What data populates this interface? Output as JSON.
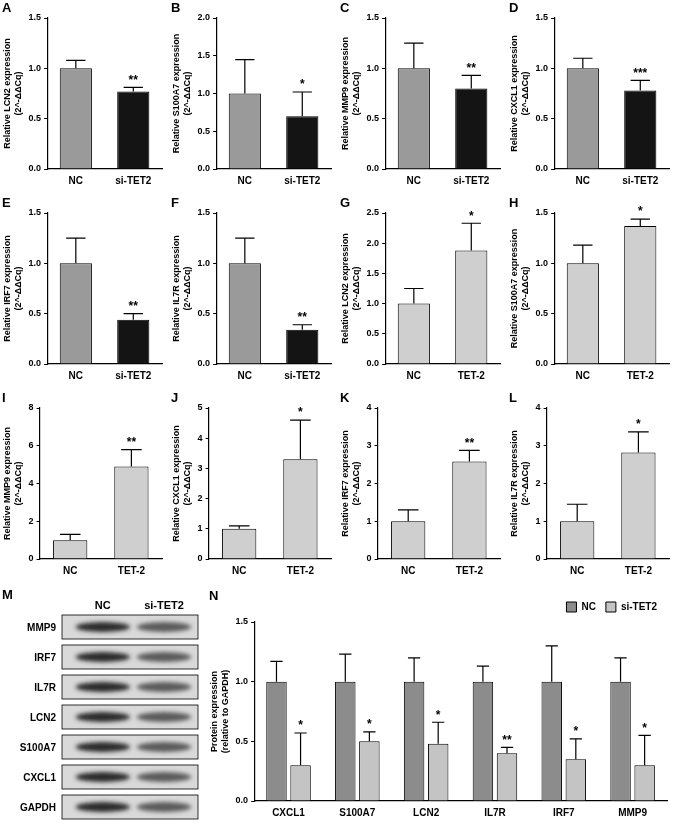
{
  "chart_data": [
    {
      "type": "bar",
      "panel_label": "A",
      "y_label": [
        "Relative LCN2 expression",
        "(2^-ΔΔCq)"
      ],
      "categories": [
        "NC",
        "si-TET2"
      ],
      "values": [
        1.0,
        0.77
      ],
      "errors": [
        0.08,
        0.04
      ],
      "colors": [
        "#9a9a9a",
        "#141414"
      ],
      "annotations": [
        {
          "category": "si-TET2",
          "text": "**"
        }
      ],
      "ylim": [
        0,
        1.5
      ],
      "yticks": [
        {
          "value": 0,
          "label": "0.0"
        },
        0.5,
        {
          "value": 1,
          "label": "1.0"
        },
        1.5
      ],
      "grid": false
    },
    {
      "type": "bar",
      "panel_label": "B",
      "y_label": [
        "Relative S100A7 expression",
        "(2^-ΔΔCq)"
      ],
      "categories": [
        "NC",
        "si-TET2"
      ],
      "values": [
        1.0,
        0.7
      ],
      "errors": [
        0.45,
        0.32
      ],
      "colors": [
        "#9a9a9a",
        "#141414"
      ],
      "annotations": [
        {
          "category": "si-TET2",
          "text": "*"
        }
      ],
      "ylim": [
        0,
        2
      ],
      "yticks": [
        {
          "value": 0,
          "label": "0.0"
        },
        0.5,
        {
          "value": 1,
          "label": "1.0"
        },
        1.5,
        {
          "value": 2,
          "label": "2.0"
        }
      ],
      "grid": false
    },
    {
      "type": "bar",
      "panel_label": "C",
      "y_label": [
        "Relative MMP9 expression",
        "(2^-ΔΔCq)"
      ],
      "categories": [
        "NC",
        "si-TET2"
      ],
      "values": [
        1.0,
        0.8
      ],
      "errors": [
        0.25,
        0.13
      ],
      "colors": [
        "#9a9a9a",
        "#141414"
      ],
      "annotations": [
        {
          "category": "si-TET2",
          "text": "**"
        }
      ],
      "ylim": [
        0,
        1.5
      ],
      "yticks": [
        {
          "value": 0,
          "label": "0.0"
        },
        0.5,
        {
          "value": 1,
          "label": "1.0"
        },
        1.5
      ],
      "grid": false
    },
    {
      "type": "bar",
      "panel_label": "D",
      "y_label": [
        "Relative CXCL1 expression",
        "(2^-ΔΔCq)"
      ],
      "categories": [
        "NC",
        "si-TET2"
      ],
      "values": [
        1.0,
        0.78
      ],
      "errors": [
        0.1,
        0.1
      ],
      "colors": [
        "#9a9a9a",
        "#141414"
      ],
      "annotations": [
        {
          "category": "si-TET2",
          "text": "***"
        }
      ],
      "ylim": [
        0,
        1.5
      ],
      "yticks": [
        {
          "value": 0,
          "label": "0.0"
        },
        0.5,
        {
          "value": 1,
          "label": "1.0"
        },
        1.5
      ],
      "grid": false
    },
    {
      "type": "bar",
      "panel_label": "E",
      "y_label": [
        "Relative IRF7 expression",
        "(2^-ΔΔCq)"
      ],
      "categories": [
        "NC",
        "si-TET2"
      ],
      "values": [
        1.0,
        0.44
      ],
      "errors": [
        0.25,
        0.06
      ],
      "colors": [
        "#9a9a9a",
        "#141414"
      ],
      "annotations": [
        {
          "category": "si-TET2",
          "text": "**"
        }
      ],
      "ylim": [
        0,
        1.5
      ],
      "yticks": [
        {
          "value": 0,
          "label": "0.0"
        },
        0.5,
        {
          "value": 1,
          "label": "1.0"
        },
        1.5
      ],
      "grid": false
    },
    {
      "type": "bar",
      "panel_label": "F",
      "y_label": [
        "Relative IL7R expression",
        "(2^-ΔΔCq)"
      ],
      "categories": [
        "NC",
        "si-TET2"
      ],
      "values": [
        1.0,
        0.34
      ],
      "errors": [
        0.25,
        0.05
      ],
      "colors": [
        "#9a9a9a",
        "#141414"
      ],
      "annotations": [
        {
          "category": "si-TET2",
          "text": "**"
        }
      ],
      "ylim": [
        0,
        1.5
      ],
      "yticks": [
        {
          "value": 0,
          "label": "0.0"
        },
        0.5,
        {
          "value": 1,
          "label": "1.0"
        },
        1.5
      ],
      "grid": false
    },
    {
      "type": "bar",
      "panel_label": "G",
      "y_label": [
        "Relative LCN2 expression",
        "(2^-ΔΔCq)"
      ],
      "categories": [
        "NC",
        "TET-2"
      ],
      "values": [
        1.0,
        1.88
      ],
      "errors": [
        0.25,
        0.45
      ],
      "colors": [
        "#cfcfcf",
        "#cfcfcf"
      ],
      "annotations": [
        {
          "category": "TET-2",
          "text": "*"
        }
      ],
      "ylim": [
        0,
        2.5
      ],
      "yticks": [
        {
          "value": 0,
          "label": "0.0"
        },
        0.5,
        {
          "value": 1,
          "label": "1.0"
        },
        1.5,
        {
          "value": 2,
          "label": "2.0"
        },
        2.5
      ],
      "grid": false
    },
    {
      "type": "bar",
      "panel_label": "H",
      "y_label": [
        "Relative S100A7 expression",
        "(2^-ΔΔCq)"
      ],
      "categories": [
        "NC",
        "TET-2"
      ],
      "values": [
        1.0,
        1.37
      ],
      "errors": [
        0.18,
        0.07
      ],
      "colors": [
        "#cfcfcf",
        "#cfcfcf"
      ],
      "annotations": [
        {
          "category": "TET-2",
          "text": "*"
        }
      ],
      "ylim": [
        0,
        1.5
      ],
      "yticks": [
        {
          "value": 0,
          "label": "0.0"
        },
        0.5,
        {
          "value": 1,
          "label": "1.0"
        },
        1.5
      ],
      "grid": false
    },
    {
      "type": "bar",
      "panel_label": "I",
      "y_label": [
        "Relative MMP9 expression",
        "(2^-ΔΔCq)"
      ],
      "categories": [
        "NC",
        "TET-2"
      ],
      "values": [
        1.0,
        4.9
      ],
      "errors": [
        0.3,
        0.9
      ],
      "colors": [
        "#cfcfcf",
        "#cfcfcf"
      ],
      "annotations": [
        {
          "category": "TET-2",
          "text": "**"
        }
      ],
      "ylim": [
        0,
        8
      ],
      "yticks": [
        0,
        2,
        4,
        6,
        8
      ],
      "grid": false
    },
    {
      "type": "bar",
      "panel_label": "J",
      "y_label": [
        "Relative CXCL1 expression",
        "(2^-ΔΔCq)"
      ],
      "categories": [
        "NC",
        "TET-2"
      ],
      "values": [
        1.0,
        3.3
      ],
      "errors": [
        0.1,
        1.3
      ],
      "colors": [
        "#cfcfcf",
        "#cfcfcf"
      ],
      "annotations": [
        {
          "category": "TET-2",
          "text": "*"
        }
      ],
      "ylim": [
        0,
        5
      ],
      "yticks": [
        0,
        1,
        2,
        3,
        4,
        5
      ],
      "grid": false
    },
    {
      "type": "bar",
      "panel_label": "K",
      "y_label": [
        "Relative IRF7 expression",
        "(2^-ΔΔCq)"
      ],
      "categories": [
        "NC",
        "TET-2"
      ],
      "values": [
        1.0,
        2.58
      ],
      "errors": [
        0.3,
        0.3
      ],
      "colors": [
        "#cfcfcf",
        "#cfcfcf"
      ],
      "annotations": [
        {
          "category": "TET-2",
          "text": "**"
        }
      ],
      "ylim": [
        0,
        4
      ],
      "yticks": [
        0,
        1,
        2,
        3,
        4
      ],
      "grid": false
    },
    {
      "type": "bar",
      "panel_label": "L",
      "y_label": [
        "Relative IL7R expression",
        "(2^-ΔΔCq)"
      ],
      "categories": [
        "NC",
        "TET-2"
      ],
      "values": [
        1.0,
        2.82
      ],
      "errors": [
        0.45,
        0.55
      ],
      "colors": [
        "#cfcfcf",
        "#cfcfcf"
      ],
      "annotations": [
        {
          "category": "TET-2",
          "text": "*"
        }
      ],
      "ylim": [
        0,
        4
      ],
      "yticks": [
        0,
        1,
        2,
        3,
        4
      ],
      "grid": false
    },
    {
      "type": "bar",
      "panel_label": "N",
      "y_label": [
        "Protein expression",
        "(relative to GAPDH)"
      ],
      "categories": [
        "CXCL1",
        "S100A7",
        "LCN2",
        "IL7R",
        "IRF7",
        "MMP9"
      ],
      "series": [
        {
          "name": "NC",
          "color": "#8c8c8c",
          "values": [
            1.0,
            1.0,
            1.0,
            1.0,
            1.0,
            1.0
          ],
          "errors": [
            0.17,
            0.23,
            0.2,
            0.13,
            0.3,
            0.2
          ]
        },
        {
          "name": "si-TET2",
          "color": "#c4c4c4",
          "values": [
            0.3,
            0.5,
            0.48,
            0.4,
            0.35,
            0.3
          ],
          "errors": [
            0.27,
            0.08,
            0.18,
            0.05,
            0.17,
            0.25
          ],
          "annotations": [
            "*",
            "*",
            "*",
            "**",
            "*",
            "*"
          ]
        }
      ],
      "legend": "top-right",
      "ylim": [
        0,
        1.5
      ],
      "yticks": [
        {
          "value": 0,
          "label": "0.0"
        },
        0.5,
        {
          "value": 1,
          "label": "1.0"
        },
        1.5
      ],
      "grid": false
    }
  ],
  "blot": {
    "panel_label": "M",
    "lanes": [
      "NC",
      "si-TET2"
    ],
    "rows": [
      "MMP9",
      "IRF7",
      "IL7R",
      "LCN2",
      "S100A7",
      "CXCL1",
      "GAPDH"
    ]
  }
}
